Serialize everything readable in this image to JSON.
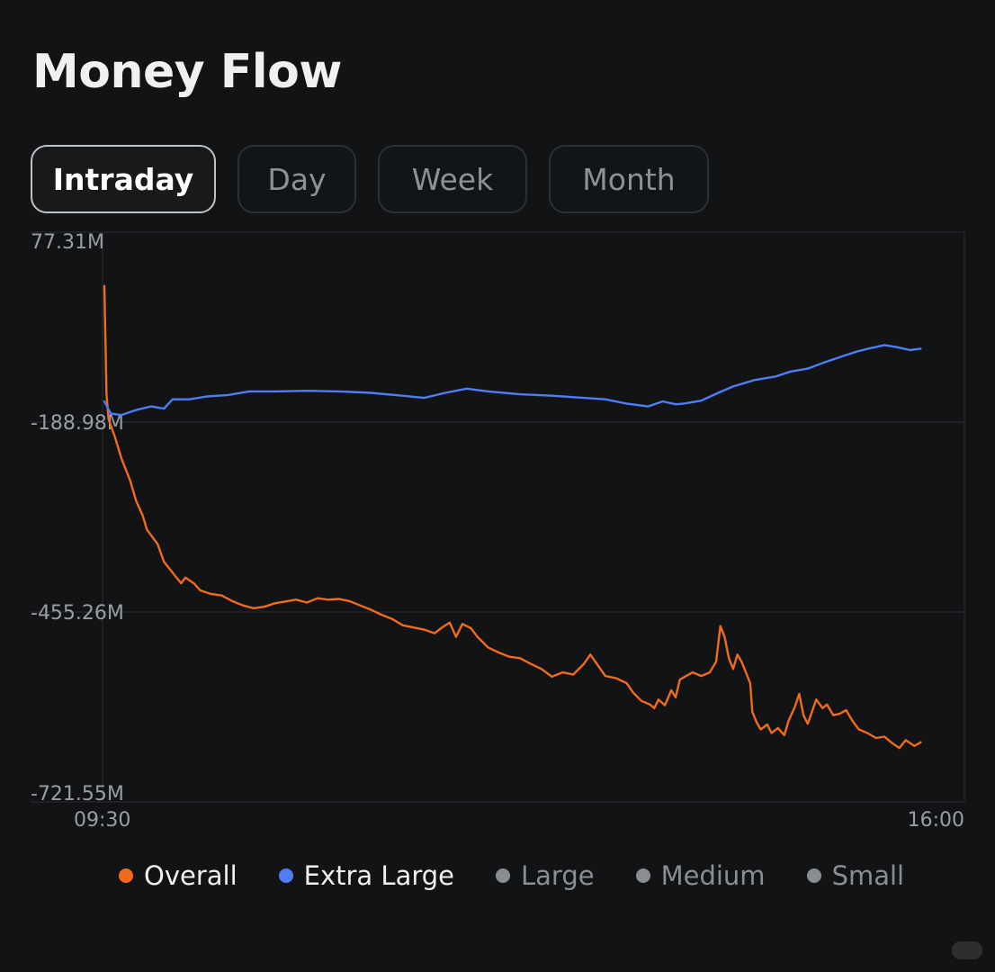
{
  "title": "Money Flow",
  "tabs": [
    {
      "label": "Intraday",
      "active": true
    },
    {
      "label": "Day",
      "active": false
    },
    {
      "label": "Week",
      "active": false
    },
    {
      "label": "Month",
      "active": false
    }
  ],
  "colors": {
    "overall": "#f26b1d",
    "extra_large": "#4f7df5",
    "muted": "#8a8e92",
    "grid": "#2a2d31"
  },
  "chart_data": {
    "type": "line",
    "title": "",
    "ylim": [
      -721.55,
      77.31
    ],
    "y_ticks": [
      "77.31M",
      "-188.98M",
      "-455.26M",
      "-721.55M"
    ],
    "y_tick_values": [
      77.31,
      -188.98,
      -455.26,
      -721.55
    ],
    "x_ticks": [
      "09:30",
      "16:00"
    ],
    "x_range_minutes": [
      0,
      390
    ],
    "grid": true,
    "legend_position": "bottom",
    "series": [
      {
        "name": "Overall",
        "color": "#f26b1d",
        "points": [
          [
            0,
            2
          ],
          [
            1,
            -150
          ],
          [
            2,
            -185
          ],
          [
            5,
            -210
          ],
          [
            8,
            -240
          ],
          [
            12,
            -270
          ],
          [
            15,
            -300
          ],
          [
            18,
            -320
          ],
          [
            20,
            -340
          ],
          [
            25,
            -360
          ],
          [
            28,
            -385
          ],
          [
            32,
            -400
          ],
          [
            36,
            -415
          ],
          [
            38,
            -407
          ],
          [
            42,
            -415
          ],
          [
            45,
            -425
          ],
          [
            50,
            -430
          ],
          [
            55,
            -432
          ],
          [
            60,
            -440
          ],
          [
            65,
            -446
          ],
          [
            70,
            -450
          ],
          [
            75,
            -448
          ],
          [
            80,
            -443
          ],
          [
            90,
            -438
          ],
          [
            95,
            -442
          ],
          [
            100,
            -436
          ],
          [
            105,
            -438
          ],
          [
            110,
            -437
          ],
          [
            115,
            -440
          ],
          [
            120,
            -446
          ],
          [
            125,
            -452
          ],
          [
            130,
            -459
          ],
          [
            135,
            -465
          ],
          [
            140,
            -474
          ],
          [
            145,
            -477
          ],
          [
            150,
            -480
          ],
          [
            155,
            -485
          ],
          [
            158,
            -478
          ],
          [
            162,
            -470
          ],
          [
            165,
            -490
          ],
          [
            168,
            -472
          ],
          [
            172,
            -478
          ],
          [
            175,
            -490
          ],
          [
            180,
            -505
          ],
          [
            185,
            -512
          ],
          [
            190,
            -518
          ],
          [
            195,
            -520
          ],
          [
            200,
            -528
          ],
          [
            205,
            -535
          ],
          [
            210,
            -546
          ],
          [
            215,
            -540
          ],
          [
            220,
            -543
          ],
          [
            225,
            -528
          ],
          [
            228,
            -515
          ],
          [
            232,
            -532
          ],
          [
            235,
            -545
          ],
          [
            240,
            -548
          ],
          [
            245,
            -555
          ],
          [
            248,
            -568
          ],
          [
            252,
            -580
          ],
          [
            256,
            -585
          ],
          [
            258,
            -590
          ],
          [
            260,
            -578
          ],
          [
            263,
            -586
          ],
          [
            266,
            -565
          ],
          [
            268,
            -575
          ],
          [
            270,
            -550
          ],
          [
            273,
            -545
          ],
          [
            276,
            -540
          ],
          [
            280,
            -545
          ],
          [
            284,
            -540
          ],
          [
            287,
            -525
          ],
          [
            289,
            -475
          ],
          [
            291,
            -490
          ],
          [
            293,
            -520
          ],
          [
            295,
            -535
          ],
          [
            297,
            -515
          ],
          [
            299,
            -525
          ],
          [
            301,
            -540
          ],
          [
            303,
            -555
          ],
          [
            304,
            -595
          ],
          [
            306,
            -610
          ],
          [
            308,
            -620
          ],
          [
            311,
            -613
          ],
          [
            313,
            -625
          ],
          [
            316,
            -618
          ],
          [
            319,
            -628
          ],
          [
            321,
            -608
          ],
          [
            324,
            -588
          ],
          [
            326,
            -570
          ],
          [
            328,
            -600
          ],
          [
            330,
            -612
          ],
          [
            332,
            -595
          ],
          [
            334,
            -578
          ],
          [
            337,
            -590
          ],
          [
            339,
            -585
          ],
          [
            342,
            -600
          ],
          [
            345,
            -598
          ],
          [
            348,
            -593
          ],
          [
            351,
            -608
          ],
          [
            354,
            -620
          ],
          [
            358,
            -625
          ],
          [
            362,
            -632
          ],
          [
            366,
            -630
          ],
          [
            370,
            -640
          ],
          [
            373,
            -646
          ],
          [
            376,
            -635
          ],
          [
            380,
            -643
          ],
          [
            383,
            -638
          ]
        ]
      },
      {
        "name": "Extra Large",
        "color": "#4f7df5",
        "points": [
          [
            0,
            -160
          ],
          [
            3,
            -177
          ],
          [
            8,
            -179
          ],
          [
            15,
            -172
          ],
          [
            22,
            -167
          ],
          [
            28,
            -170
          ],
          [
            32,
            -157
          ],
          [
            40,
            -157
          ],
          [
            48,
            -153
          ],
          [
            58,
            -151
          ],
          [
            68,
            -146
          ],
          [
            80,
            -146
          ],
          [
            95,
            -145
          ],
          [
            110,
            -146
          ],
          [
            125,
            -148
          ],
          [
            140,
            -152
          ],
          [
            150,
            -155
          ],
          [
            160,
            -148
          ],
          [
            170,
            -142
          ],
          [
            180,
            -146
          ],
          [
            195,
            -150
          ],
          [
            210,
            -152
          ],
          [
            225,
            -155
          ],
          [
            235,
            -157
          ],
          [
            245,
            -163
          ],
          [
            255,
            -167
          ],
          [
            262,
            -160
          ],
          [
            268,
            -164
          ],
          [
            272,
            -163
          ],
          [
            280,
            -159
          ],
          [
            288,
            -148
          ],
          [
            295,
            -139
          ],
          [
            305,
            -130
          ],
          [
            315,
            -125
          ],
          [
            322,
            -118
          ],
          [
            330,
            -114
          ],
          [
            338,
            -105
          ],
          [
            345,
            -98
          ],
          [
            353,
            -90
          ],
          [
            360,
            -85
          ],
          [
            366,
            -81
          ],
          [
            372,
            -84
          ],
          [
            378,
            -88
          ],
          [
            383,
            -86
          ]
        ]
      }
    ]
  },
  "legend": [
    {
      "label": "Overall",
      "color": "#f26b1d",
      "active": true
    },
    {
      "label": "Extra Large",
      "color": "#4f7df5",
      "active": true
    },
    {
      "label": "Large",
      "color": "#8a8e92",
      "active": false
    },
    {
      "label": "Medium",
      "color": "#8a8e92",
      "active": false
    },
    {
      "label": "Small",
      "color": "#8a8e92",
      "active": false
    }
  ]
}
